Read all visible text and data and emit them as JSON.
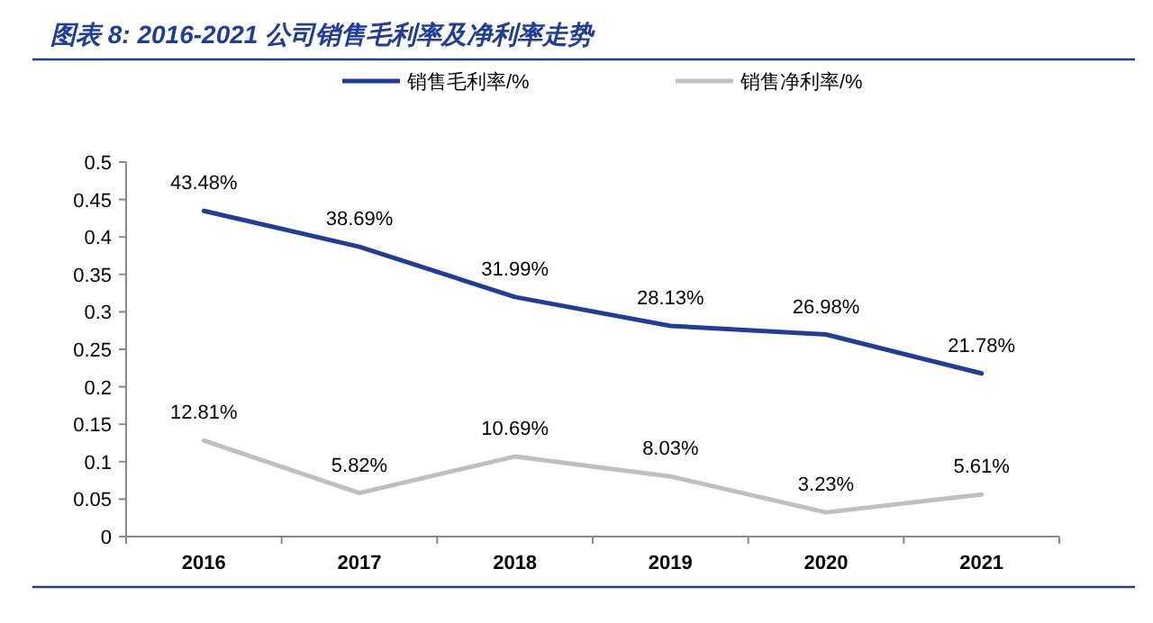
{
  "chart_data": {
    "type": "line",
    "title": "图表 8:  2016-2021 公司销售毛利率及净利率走势",
    "categories": [
      "2016",
      "2017",
      "2018",
      "2019",
      "2020",
      "2021"
    ],
    "series": [
      {
        "name": "销售毛利率/%",
        "color": "#1f3d99",
        "values": [
          0.4348,
          0.3869,
          0.3199,
          0.2813,
          0.2698,
          0.2178
        ],
        "value_labels": [
          "43.48%",
          "38.69%",
          "31.99%",
          "28.13%",
          "26.98%",
          "21.78%"
        ]
      },
      {
        "name": "销售净利率/%",
        "color": "#bfbfbf",
        "values": [
          0.1281,
          0.0582,
          0.1069,
          0.0803,
          0.0323,
          0.0561
        ],
        "value_labels": [
          "12.81%",
          "5.82%",
          "10.69%",
          "8.03%",
          "3.23%",
          "5.61%"
        ]
      }
    ],
    "ylim": [
      0,
      0.5
    ],
    "yticks": [
      0,
      0.05,
      0.1,
      0.15,
      0.2,
      0.25,
      0.3,
      0.35,
      0.4,
      0.45,
      0.5
    ],
    "legend": "top",
    "grid": false,
    "marker": "none",
    "line_style": "solid"
  }
}
